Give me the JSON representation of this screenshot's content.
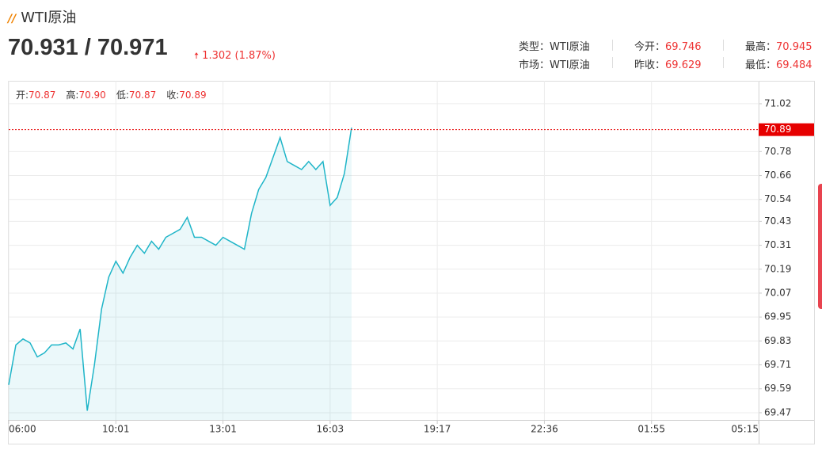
{
  "header": {
    "title": "WTI原油",
    "price": "70.931 / 70.971",
    "change": "1.302 (1.87%)"
  },
  "stats": [
    {
      "label": "类型：",
      "value": "WTI原油"
    },
    {
      "label": "今开：",
      "value": "69.746"
    },
    {
      "label": "最高：",
      "value": "70.945"
    },
    {
      "label": "市场：",
      "value": "WTI原油"
    },
    {
      "label": "昨收：",
      "value": "69.629"
    },
    {
      "label": "最低：",
      "value": "69.484"
    }
  ],
  "ohlc": [
    {
      "label": "开:",
      "value": "70.87"
    },
    {
      "label": "高:",
      "value": "70.90"
    },
    {
      "label": "低:",
      "value": "70.87"
    },
    {
      "label": "收:",
      "value": "70.89"
    }
  ],
  "chart_data": {
    "type": "line",
    "series": [
      {
        "name": "WTI原油",
        "color": "#1fb5c8",
        "values": [
          69.61,
          69.81,
          69.84,
          69.82,
          69.75,
          69.77,
          69.81,
          69.81,
          69.82,
          69.79,
          69.89,
          69.48,
          69.71,
          69.99,
          70.15,
          70.23,
          70.17,
          70.25,
          70.31,
          70.27,
          70.33,
          70.29,
          70.35,
          70.37,
          70.39,
          70.45,
          70.35,
          70.35,
          70.33,
          70.31,
          70.35,
          70.33,
          70.31,
          70.29,
          70.47,
          70.59,
          70.65,
          70.75,
          70.85,
          70.73,
          70.71,
          70.69,
          70.73,
          70.69,
          70.73,
          70.51,
          70.55,
          70.67,
          70.9
        ]
      }
    ],
    "current": 70.89,
    "current_color": "#e60000",
    "xlim": [
      0,
      105
    ],
    "xticks": [
      {
        "value": 0,
        "label": "06:00"
      },
      {
        "value": 15,
        "label": "10:01"
      },
      {
        "value": 30,
        "label": "13:01"
      },
      {
        "value": 45,
        "label": "16:03"
      },
      {
        "value": 60,
        "label": "19:17"
      },
      {
        "value": 75,
        "label": "22:36"
      },
      {
        "value": 90,
        "label": "01:55"
      },
      {
        "value": 105,
        "label": "05:15"
      }
    ],
    "ylim": [
      69.434,
      71.135
    ],
    "yticks": [
      71.02,
      70.78,
      70.66,
      70.54,
      70.43,
      70.31,
      70.19,
      70.07,
      69.95,
      69.83,
      69.71,
      69.59,
      69.47
    ],
    "grid": true
  }
}
